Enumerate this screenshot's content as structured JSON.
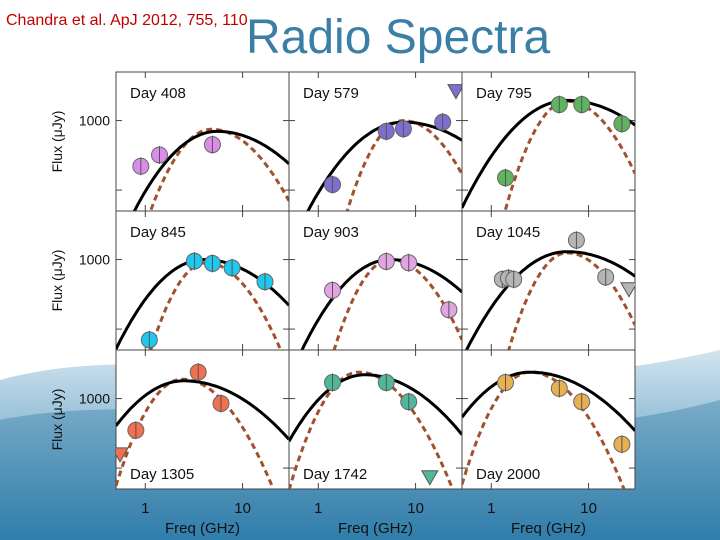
{
  "slide": {
    "citation": "Chandra et al. ApJ 2012, 755, 110",
    "title": "Radio Spectra"
  },
  "colors": {
    "title": "#3b7fa6",
    "citation": "#c00000",
    "model_solid": "#000000",
    "model_dashed": "#a0522d",
    "background_wave": "#2f7fae"
  },
  "chart_data": {
    "type": "scatter",
    "layout": "3x3 grid of spectral panels",
    "x_scale": "log",
    "xlim": [
      0.5,
      30
    ],
    "y_scale": "log",
    "ylim": [
      50,
      5000
    ],
    "x_ticks": [
      1,
      10
    ],
    "x_tick_labels": [
      "1",
      "10"
    ],
    "y_ticks": [
      1000
    ],
    "y_tick_labels": [
      "1000"
    ],
    "xlabel": "Freq (GHz)",
    "ylabel": "Flux (μJy)",
    "panels": [
      {
        "label": "Day 408",
        "label_pos": "top",
        "color": "#d98ce8",
        "points": [
          {
            "x": 0.9,
            "y": 220
          },
          {
            "x": 1.4,
            "y": 320
          },
          {
            "x": 4.9,
            "y": 450
          }
        ],
        "upper_limits": [],
        "solid_peak": {
          "nu": 5.5,
          "flux": 700,
          "w": 0.55
        },
        "dashed_peak": {
          "nu": 4.8,
          "flux": 750,
          "w": 0.4
        }
      },
      {
        "label": "Day 579",
        "label_pos": "top",
        "color": "#7e6fcf",
        "points": [
          {
            "x": 1.4,
            "y": 120
          },
          {
            "x": 5.0,
            "y": 700
          },
          {
            "x": 7.5,
            "y": 760
          },
          {
            "x": 19,
            "y": 950
          }
        ],
        "upper_limits": [
          {
            "x": 26,
            "y": 2700
          }
        ],
        "solid_peak": {
          "nu": 7.5,
          "flux": 950,
          "w": 0.6
        },
        "dashed_peak": {
          "nu": 7.5,
          "flux": 1000,
          "w": 0.35
        }
      },
      {
        "label": "Day 795",
        "label_pos": "top",
        "color": "#5fb55f",
        "points": [
          {
            "x": 1.4,
            "y": 150
          },
          {
            "x": 5.0,
            "y": 1700
          },
          {
            "x": 8.5,
            "y": 1700
          },
          {
            "x": 22,
            "y": 900
          }
        ],
        "upper_limits": [],
        "solid_peak": {
          "nu": 6.0,
          "flux": 1950,
          "w": 0.6
        },
        "dashed_peak": {
          "nu": 6.0,
          "flux": 1900,
          "w": 0.35
        }
      },
      {
        "label": "Day 845",
        "label_pos": "top",
        "color": "#1ec8ee",
        "points": [
          {
            "x": 1.1,
            "y": 70
          },
          {
            "x": 3.2,
            "y": 950
          },
          {
            "x": 4.9,
            "y": 880
          },
          {
            "x": 7.8,
            "y": 760
          },
          {
            "x": 17,
            "y": 480
          }
        ],
        "upper_limits": [],
        "solid_peak": {
          "nu": 4.0,
          "flux": 1000,
          "w": 0.55
        },
        "dashed_peak": {
          "nu": 4.2,
          "flux": 900,
          "w": 0.35
        }
      },
      {
        "label": "Day 903",
        "label_pos": "top",
        "color": "#e3a4e3",
        "points": [
          {
            "x": 1.4,
            "y": 360
          },
          {
            "x": 5.0,
            "y": 940
          },
          {
            "x": 8.5,
            "y": 900
          },
          {
            "x": 22,
            "y": 190
          }
        ],
        "upper_limits": [],
        "solid_peak": {
          "nu": 5.5,
          "flux": 1000,
          "w": 0.55
        },
        "dashed_peak": {
          "nu": 5.5,
          "flux": 1000,
          "w": 0.35
        }
      },
      {
        "label": "Day 1045",
        "label_pos": "top",
        "color": "#b5b5b5",
        "points": [
          {
            "x": 1.3,
            "y": 520
          },
          {
            "x": 1.5,
            "y": 540
          },
          {
            "x": 1.7,
            "y": 520
          },
          {
            "x": 7.5,
            "y": 1900
          },
          {
            "x": 15,
            "y": 560
          }
        ],
        "upper_limits": [
          {
            "x": 26,
            "y": 380
          }
        ],
        "solid_peak": {
          "nu": 6.0,
          "flux": 1300,
          "w": 0.6
        },
        "dashed_peak": {
          "nu": 6.0,
          "flux": 1250,
          "w": 0.35
        }
      },
      {
        "label": "Day 1305",
        "label_pos": "bottom",
        "color": "#f07050",
        "points": [
          {
            "x": 0.8,
            "y": 350
          },
          {
            "x": 3.5,
            "y": 2400
          },
          {
            "x": 6.0,
            "y": 850
          }
        ],
        "upper_limits": [
          {
            "x": 0.55,
            "y": 160
          }
        ],
        "solid_peak": {
          "nu": 2.5,
          "flux": 1800,
          "w": 0.6
        },
        "dashed_peak": {
          "nu": 2.4,
          "flux": 1900,
          "w": 0.38
        }
      },
      {
        "label": "Day 1742",
        "label_pos": "bottom",
        "color": "#4fb89a",
        "points": [
          {
            "x": 1.4,
            "y": 1700
          },
          {
            "x": 5.0,
            "y": 1700
          },
          {
            "x": 8.5,
            "y": 900
          }
        ],
        "upper_limits": [
          {
            "x": 14,
            "y": 75
          }
        ],
        "solid_peak": {
          "nu": 3.0,
          "flux": 2200,
          "w": 0.55
        },
        "dashed_peak": {
          "nu": 2.6,
          "flux": 2400,
          "w": 0.38
        }
      },
      {
        "label": "Day 2000",
        "label_pos": "bottom",
        "color": "#e8b050",
        "points": [
          {
            "x": 1.4,
            "y": 1700
          },
          {
            "x": 5.0,
            "y": 1400
          },
          {
            "x": 8.5,
            "y": 900
          },
          {
            "x": 22,
            "y": 220
          }
        ],
        "upper_limits": [],
        "solid_peak": {
          "nu": 2.5,
          "flux": 2400,
          "w": 0.6
        },
        "dashed_peak": {
          "nu": 2.5,
          "flux": 2400,
          "w": 0.38
        }
      }
    ]
  }
}
